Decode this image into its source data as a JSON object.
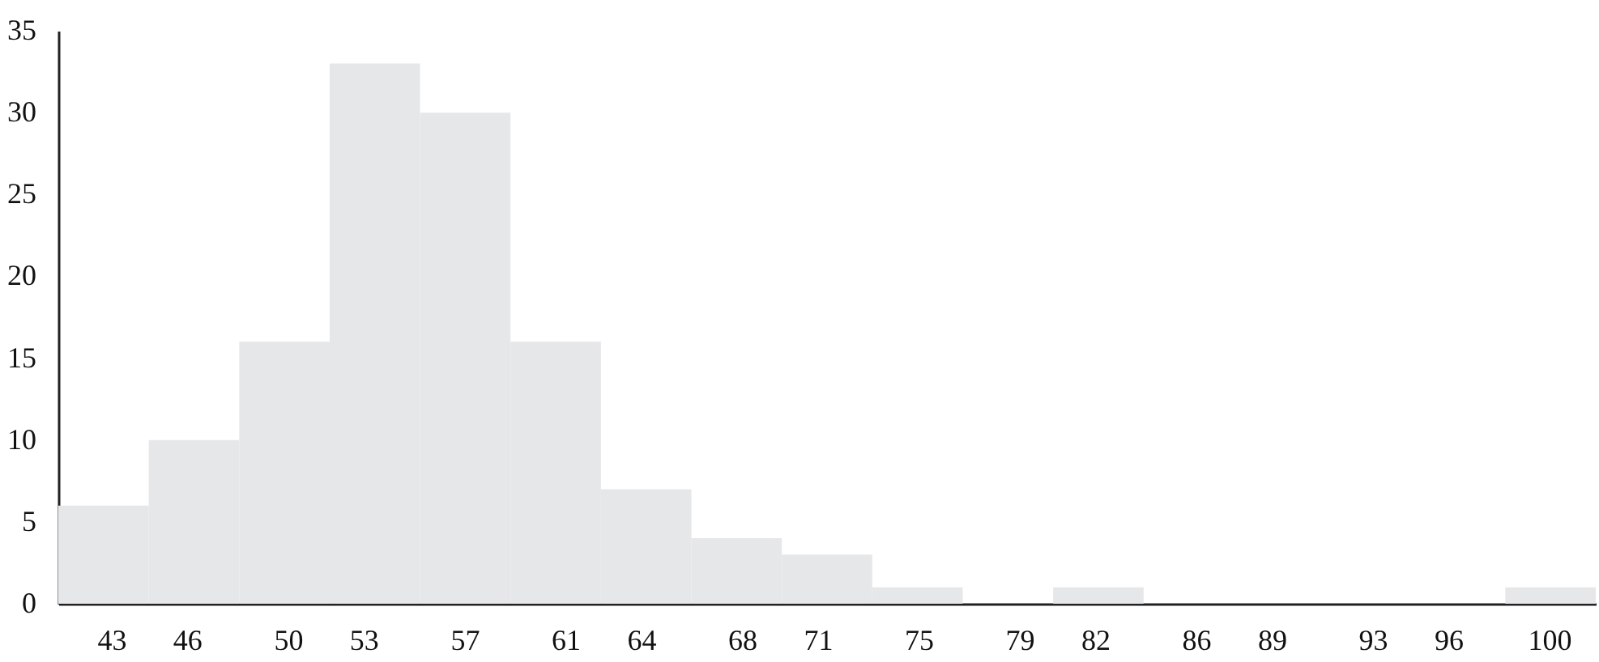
{
  "chart_data": {
    "type": "histogram",
    "bins": [
      40.9,
      44.485,
      48.07,
      51.655,
      55.24,
      58.825,
      62.41,
      65.995,
      69.58,
      73.165,
      76.75,
      80.335,
      83.92,
      87.505,
      91.09,
      94.675,
      98.26,
      101.845
    ],
    "values": [
      6,
      10,
      16,
      33,
      30,
      16,
      7,
      4,
      3,
      1,
      0,
      1,
      0,
      0,
      0,
      0,
      1
    ],
    "color": "#e6e7e9",
    "xlim": [
      40.9,
      101.845
    ],
    "xticks": [
      43,
      46,
      50,
      53,
      57,
      61,
      64,
      68,
      71,
      75,
      79,
      82,
      86,
      89,
      93,
      96,
      100
    ],
    "ylim": [
      0,
      35
    ],
    "yticks": [
      0,
      5,
      10,
      15,
      20,
      25,
      30,
      35
    ],
    "grid": false
  }
}
